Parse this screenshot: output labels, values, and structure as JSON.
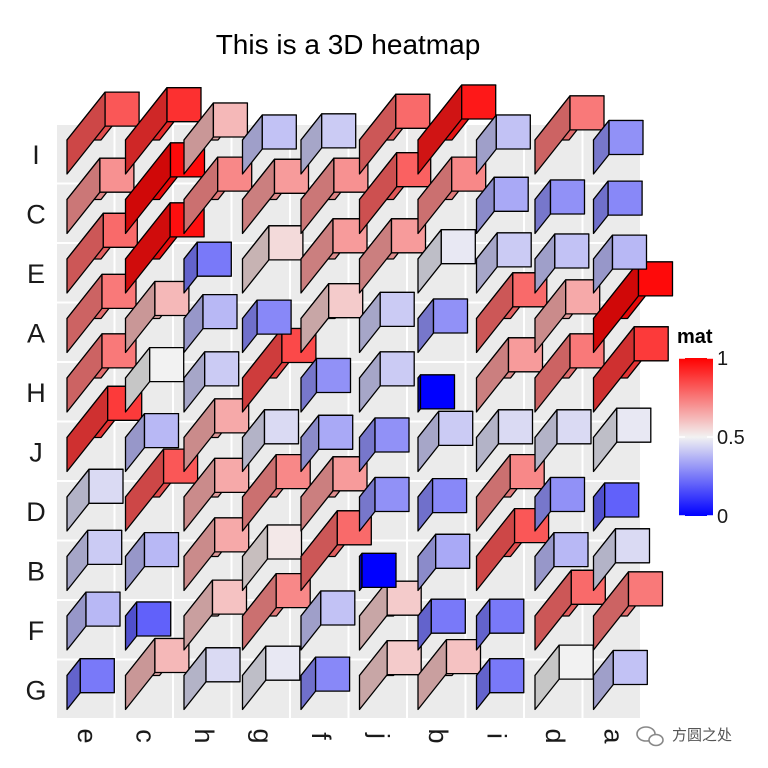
{
  "chart_data": {
    "type": "heatmap",
    "title": "This is a 3D heatmap",
    "rows": [
      "I",
      "C",
      "E",
      "A",
      "H",
      "J",
      "D",
      "B",
      "F",
      "G"
    ],
    "columns": [
      "e",
      "c",
      "h",
      "g",
      "f",
      "j",
      "b",
      "i",
      "d",
      "a"
    ],
    "values": [
      [
        0.82,
        0.9,
        0.62,
        0.4,
        0.42,
        0.78,
        0.95,
        0.4,
        0.75,
        0.3
      ],
      [
        0.7,
        0.98,
        0.72,
        0.68,
        0.7,
        0.8,
        0.72,
        0.35,
        0.3,
        0.28
      ],
      [
        0.78,
        0.97,
        0.25,
        0.55,
        0.68,
        0.68,
        0.48,
        0.42,
        0.4,
        0.38
      ],
      [
        0.75,
        0.62,
        0.38,
        0.28,
        0.58,
        0.42,
        0.3,
        0.78,
        0.65,
        0.98
      ],
      [
        0.75,
        0.5,
        0.42,
        0.85,
        0.3,
        0.42,
        0.0,
        0.68,
        0.75,
        0.88
      ],
      [
        0.88,
        0.38,
        0.65,
        0.45,
        0.35,
        0.3,
        0.42,
        0.45,
        0.45,
        0.48
      ],
      [
        0.45,
        0.82,
        0.65,
        0.72,
        0.68,
        0.3,
        0.28,
        0.72,
        0.3,
        0.2
      ],
      [
        0.42,
        0.38,
        0.65,
        0.52,
        0.78,
        0.0,
        0.35,
        0.82,
        0.38,
        0.45
      ],
      [
        0.38,
        0.2,
        0.6,
        0.72,
        0.4,
        0.58,
        0.25,
        0.25,
        0.78,
        0.75
      ],
      [
        0.25,
        0.62,
        0.45,
        0.48,
        0.28,
        0.58,
        0.6,
        0.25,
        0.5,
        0.4
      ]
    ],
    "legend": {
      "title": "mat",
      "ticks": [
        {
          "value": 1,
          "label": "1"
        },
        {
          "value": 0.5,
          "label": "0.5"
        },
        {
          "value": 0,
          "label": "0"
        }
      ],
      "placement": "right"
    },
    "colors": {
      "low": "#0000ff",
      "mid": "#f2f2f2",
      "high": "#ff0000"
    },
    "value_range": [
      0,
      1
    ]
  },
  "watermark": {
    "text": "方圆之处",
    "icon": "chat-bubble-icon"
  }
}
